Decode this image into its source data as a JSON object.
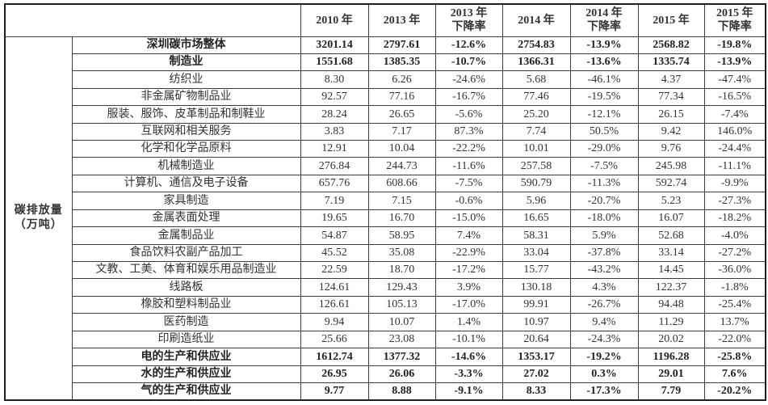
{
  "chart_data": {
    "type": "table",
    "unit_label": "碳排放量\n（万吨）",
    "columns": [
      "2010 年",
      "2013 年",
      "2013 年\n下降率",
      "2014 年",
      "2014 年\n下降率",
      "2015 年",
      "2015 年\n下降率"
    ],
    "rows": [
      {
        "label": "深圳碳市场整体",
        "bold": true,
        "values": [
          "3201.14",
          "2797.61",
          "-12.6%",
          "2754.83",
          "-13.9%",
          "2568.82",
          "-19.8%"
        ]
      },
      {
        "label": "制造业",
        "bold": true,
        "values": [
          "1551.68",
          "1385.35",
          "-10.7%",
          "1366.31",
          "-13.6%",
          "1335.74",
          "-13.9%"
        ]
      },
      {
        "label": "纺织业",
        "bold": false,
        "values": [
          "8.30",
          "6.26",
          "-24.6%",
          "5.68",
          "-46.1%",
          "4.37",
          "-47.4%"
        ]
      },
      {
        "label": "非金属矿物制品业",
        "bold": false,
        "values": [
          "92.57",
          "77.16",
          "-16.7%",
          "77.46",
          "-19.5%",
          "77.34",
          "-16.5%"
        ]
      },
      {
        "label": "服装、服饰、皮革制品和制鞋业",
        "bold": false,
        "values": [
          "28.24",
          "26.65",
          "-5.6%",
          "25.20",
          "-12.1%",
          "26.15",
          "-7.4%"
        ]
      },
      {
        "label": "互联网和相关服务",
        "bold": false,
        "values": [
          "3.83",
          "7.17",
          "87.3%",
          "7.74",
          "50.5%",
          "9.42",
          "146.0%"
        ]
      },
      {
        "label": "化学和化学品原料",
        "bold": false,
        "values": [
          "12.91",
          "10.04",
          "-22.2%",
          "10.01",
          "-29.0%",
          "9.76",
          "-24.4%"
        ]
      },
      {
        "label": "机械制造业",
        "bold": false,
        "values": [
          "276.84",
          "244.73",
          "-11.6%",
          "257.58",
          "-7.5%",
          "245.98",
          "-11.1%"
        ]
      },
      {
        "label": "计算机、通信及电子设备",
        "bold": false,
        "values": [
          "657.76",
          "608.66",
          "-7.5%",
          "590.79",
          "-11.3%",
          "592.74",
          "-9.9%"
        ]
      },
      {
        "label": "家具制造",
        "bold": false,
        "values": [
          "7.19",
          "7.15",
          "-0.6%",
          "5.96",
          "-20.7%",
          "5.23",
          "-27.3%"
        ]
      },
      {
        "label": "金属表面处理",
        "bold": false,
        "values": [
          "19.65",
          "16.70",
          "-15.0%",
          "16.65",
          "-18.0%",
          "16.07",
          "-18.2%"
        ]
      },
      {
        "label": "金属制品业",
        "bold": false,
        "values": [
          "54.87",
          "58.95",
          "7.4%",
          "58.31",
          "5.9%",
          "52.68",
          "-4.0%"
        ]
      },
      {
        "label": "食品饮料农副产品加工",
        "bold": false,
        "values": [
          "45.52",
          "35.08",
          "-22.9%",
          "33.04",
          "-37.8%",
          "33.14",
          "-27.2%"
        ]
      },
      {
        "label": "文教、工美、体育和娱乐用品制造业",
        "bold": false,
        "values": [
          "22.59",
          "18.70",
          "-17.2%",
          "15.77",
          "-43.2%",
          "14.45",
          "-36.0%"
        ]
      },
      {
        "label": "线路板",
        "bold": false,
        "values": [
          "124.61",
          "129.43",
          "3.9%",
          "130.18",
          "4.3%",
          "122.37",
          "-1.8%"
        ]
      },
      {
        "label": "橡胶和塑料制品业",
        "bold": false,
        "values": [
          "126.61",
          "105.13",
          "-17.0%",
          "99.91",
          "-26.7%",
          "94.48",
          "-25.4%"
        ]
      },
      {
        "label": "医药制造",
        "bold": false,
        "values": [
          "9.94",
          "10.07",
          "1.4%",
          "10.97",
          "9.4%",
          "11.29",
          "13.7%"
        ]
      },
      {
        "label": "印刷造纸业",
        "bold": false,
        "values": [
          "25.66",
          "23.08",
          "-10.1%",
          "20.64",
          "-24.3%",
          "20.02",
          "-22.0%"
        ]
      },
      {
        "label": "电的生产和供应业",
        "bold": true,
        "values": [
          "1612.74",
          "1377.32",
          "-14.6%",
          "1353.17",
          "-19.2%",
          "1196.28",
          "-25.8%"
        ]
      },
      {
        "label": "水的生产和供应业",
        "bold": true,
        "values": [
          "26.95",
          "26.06",
          "-3.3%",
          "27.02",
          "0.3%",
          "29.01",
          "7.6%"
        ]
      },
      {
        "label": "气的生产和供应业",
        "bold": true,
        "values": [
          "9.77",
          "8.88",
          "-9.1%",
          "8.33",
          "-17.3%",
          "7.79",
          "-20.2%"
        ]
      }
    ]
  }
}
